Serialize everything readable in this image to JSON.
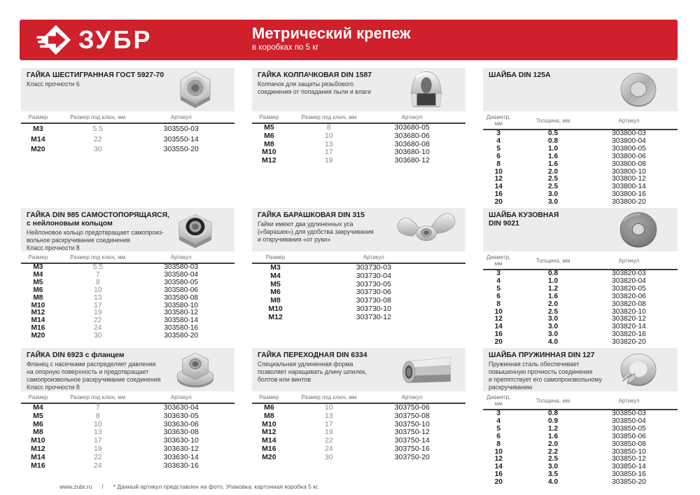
{
  "brand": {
    "logo_text": "ЗУБР"
  },
  "header": {
    "title": "Метрический крепеж",
    "subtitle": "в коробках по 5 кг",
    "background_color": "#cf202b"
  },
  "footer": {
    "site": "www.zubr.ru",
    "separator": "/",
    "note": "* Данный артикул представлен на фото. Упаковка: картонная коробка 5 кг."
  },
  "sections": [
    {
      "id": "hex-nut",
      "type": "nut",
      "image": "hex-nut",
      "title_lines": [
        "ГАЙКА ШЕСТИГРАННАЯ ГОСТ 5927-70"
      ],
      "description_lines": [
        "Класс прочности 6"
      ],
      "columns": [
        "Размер",
        "Размер под ключ, мм",
        "Артикул"
      ],
      "rows": [
        [
          "М3",
          "5.5",
          "303550-03"
        ],
        [
          "М14",
          "22",
          "303550-14"
        ],
        [
          "М20",
          "30",
          "303550-20"
        ]
      ]
    },
    {
      "id": "cap-nut",
      "type": "nut",
      "image": "cap-nut",
      "title_lines": [
        "ГАЙКА КОЛПАЧКОВАЯ DIN 1587"
      ],
      "description_lines": [
        "Колпачок для защиты резьбового",
        "соединения от попадания пыли и влаги"
      ],
      "columns": [
        "Размер",
        "Размер под ключ, мм",
        "Артикул"
      ],
      "rows": [
        [
          "М5",
          "8",
          "303680-05"
        ],
        [
          "М6",
          "10",
          "303680-06"
        ],
        [
          "М8",
          "13",
          "303680-08"
        ],
        [
          "М10",
          "17",
          "303680-10"
        ],
        [
          "М12",
          "19",
          "303680-12"
        ]
      ]
    },
    {
      "id": "washer-din125a",
      "type": "washer",
      "image": "flat-washer",
      "title_lines": [
        "ШАЙБА DIN 125А"
      ],
      "description_lines": [],
      "columns": [
        "Диаметр, мм",
        "Толщина, мм",
        "Артикул"
      ],
      "rows": [
        [
          "3",
          "0.5",
          "303800-03"
        ],
        [
          "4",
          "0.8",
          "303800-04"
        ],
        [
          "5",
          "1.0",
          "303800-05"
        ],
        [
          "6",
          "1.6",
          "303800-06"
        ],
        [
          "8",
          "1.6",
          "303800-08"
        ],
        [
          "10",
          "2.0",
          "303800-10"
        ],
        [
          "12",
          "2.5",
          "303800-12"
        ],
        [
          "14",
          "2.5",
          "303800-14"
        ],
        [
          "16",
          "3.0",
          "303800-16"
        ],
        [
          "20",
          "3.0",
          "303800-20"
        ]
      ]
    },
    {
      "id": "lock-nut",
      "type": "nut",
      "image": "lock-nut",
      "title_lines": [
        "ГАЙКА DIN 985 САМОСТОПОРЯЩАЯСЯ,",
        "с нейлоновым кольцом"
      ],
      "description_lines": [
        "Нейлоновое кольцо предотвращает самопроиз-",
        "вольное раскручивание соединения",
        "Класс прочности 8"
      ],
      "columns": [
        "Размер",
        "Размер под ключ, мм",
        "Артикул"
      ],
      "rows": [
        [
          "М3",
          "5.5",
          "303580-03"
        ],
        [
          "М4",
          "7",
          "303580-04"
        ],
        [
          "М5",
          "8",
          "303580-05"
        ],
        [
          "М6",
          "10",
          "303580-06"
        ],
        [
          "М8",
          "13",
          "303580-08"
        ],
        [
          "М10",
          "17",
          "303580-10"
        ],
        [
          "М12",
          "19",
          "303580-12"
        ],
        [
          "М14",
          "22",
          "303580-14"
        ],
        [
          "М16",
          "24",
          "303580-16"
        ],
        [
          "М20",
          "30",
          "303580-20"
        ]
      ]
    },
    {
      "id": "wing-nut",
      "type": "wing",
      "image": "wing-nut",
      "title_lines": [
        "ГАЙКА БАРАШКОВАЯ DIN 315"
      ],
      "description_lines": [
        "Гайки имеют два удлиненных уса",
        "(«барашек») для удобства закручивания",
        "и откручивания «от руки»"
      ],
      "columns": [
        "Размер",
        "Артикул"
      ],
      "rows": [
        [
          "М3",
          "303730-03"
        ],
        [
          "М4",
          "303730-04"
        ],
        [
          "М5",
          "303730-05"
        ],
        [
          "М6",
          "303730-06"
        ],
        [
          "М8",
          "303730-08"
        ],
        [
          "М10",
          "303730-10"
        ],
        [
          "М12",
          "303730-12"
        ]
      ]
    },
    {
      "id": "washer-body",
      "type": "washer",
      "image": "fender-washer",
      "title_lines": [
        "ШАЙБА КУЗОВНАЯ",
        "DIN 9021"
      ],
      "description_lines": [],
      "columns": [
        "Диаметр, мм",
        "Толщина, мм",
        "Артикул"
      ],
      "rows": [
        [
          "3",
          "0.8",
          "303820-03"
        ],
        [
          "4",
          "1.0",
          "303820-04"
        ],
        [
          "5",
          "1.2",
          "303820-05"
        ],
        [
          "6",
          "1.6",
          "303820-06"
        ],
        [
          "8",
          "2.0",
          "303820-08"
        ],
        [
          "10",
          "2.5",
          "303820-10"
        ],
        [
          "12",
          "3.0",
          "303820-12"
        ],
        [
          "14",
          "3.0",
          "303820-14"
        ],
        [
          "16",
          "3.0",
          "303820-16"
        ],
        [
          "20",
          "4.0",
          "303820-20"
        ]
      ]
    },
    {
      "id": "flange-nut",
      "type": "nut",
      "image": "flange-nut",
      "title_lines": [
        "ГАЙКА DIN 6923 с фланцем"
      ],
      "description_lines": [
        "Фланец с насечками распределяет давление",
        "на опорную поверхность и предотвращает",
        "самопроизвольное раскручивание соединения",
        "Класс прочности 8"
      ],
      "columns": [
        "Размер",
        "Размер под ключ, мм",
        "Артикул"
      ],
      "rows": [
        [
          "М4",
          "7",
          "303630-04"
        ],
        [
          "М5",
          "8",
          "303630-05"
        ],
        [
          "М6",
          "10",
          "303630-06"
        ],
        [
          "М8",
          "13",
          "303630-08"
        ],
        [
          "М10",
          "17",
          "303630-10"
        ],
        [
          "М12",
          "19",
          "303630-12"
        ],
        [
          "М14",
          "22",
          "303630-14"
        ],
        [
          "М16",
          "24",
          "303630-16"
        ]
      ]
    },
    {
      "id": "coupling-nut",
      "type": "nut",
      "image": "coupling-nut",
      "title_lines": [
        "ГАЙКА ПЕРЕХОДНАЯ DIN 6334"
      ],
      "description_lines": [
        "Специальная удлиненная форма",
        "позволяет наращивать длину шпилек,",
        "болтов или винтов"
      ],
      "columns": [
        "Размер",
        "Размер под ключ, мм",
        "Артикул"
      ],
      "rows": [
        [
          "М6",
          "10",
          "303750-06"
        ],
        [
          "М8",
          "13",
          "303750-08"
        ],
        [
          "М10",
          "17",
          "303750-10"
        ],
        [
          "М12",
          "19",
          "303750-12"
        ],
        [
          "М14",
          "22",
          "303750-14"
        ],
        [
          "М16",
          "24",
          "303750-16"
        ],
        [
          "М20",
          "30",
          "303750-20"
        ]
      ]
    },
    {
      "id": "washer-spring",
      "type": "washer",
      "image": "spring-washer",
      "title_lines": [
        "ШАЙБА ПРУЖИННАЯ DIN 127"
      ],
      "description_lines": [
        "Пружинная сталь обеспечивает",
        "повышенную прочность соединения",
        "и препятствует его самопроизвольному",
        "раскручиванию"
      ],
      "columns": [
        "Диаметр, мм",
        "Толщина, мм",
        "Артикул"
      ],
      "rows": [
        [
          "3",
          "0.8",
          "303850-03"
        ],
        [
          "4",
          "0.9",
          "303850-04"
        ],
        [
          "5",
          "1.2",
          "303850-05"
        ],
        [
          "6",
          "1.6",
          "303850-06"
        ],
        [
          "8",
          "2.0",
          "303850-08"
        ],
        [
          "10",
          "2.2",
          "303850-10"
        ],
        [
          "12",
          "2.5",
          "303850-12"
        ],
        [
          "14",
          "3.0",
          "303850-14"
        ],
        [
          "16",
          "3.5",
          "303850-16"
        ],
        [
          "20",
          "4.0",
          "303850-20"
        ]
      ]
    }
  ]
}
